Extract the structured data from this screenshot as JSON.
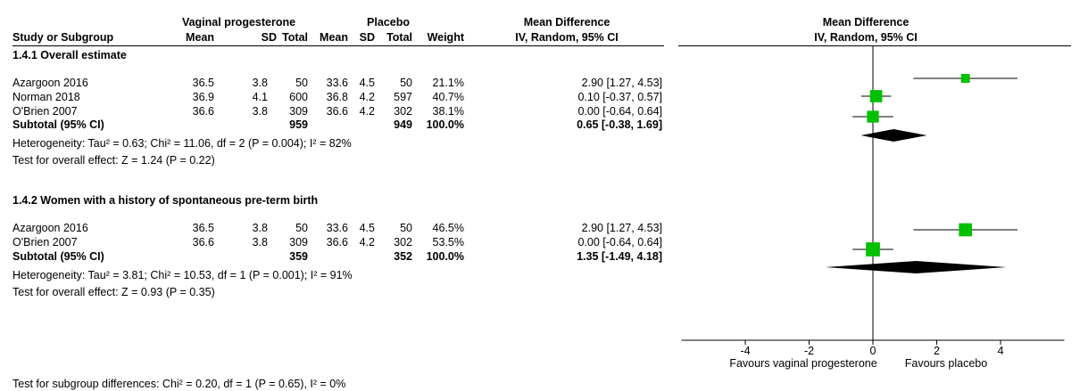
{
  "header": {
    "group1": "Vaginal progesterone",
    "group2": "Placebo",
    "effect_title": "Mean Difference",
    "plot_title": "Mean Difference",
    "plot_subtitle": "IV, Random, 95% CI",
    "columns": {
      "study": "Study or Subgroup",
      "mean1": "Mean",
      "sd1": "SD",
      "total1": "Total",
      "mean2": "Mean",
      "sd2": "SD",
      "total2": "Total",
      "weight": "Weight",
      "ci": "IV, Random, 95% CI"
    }
  },
  "subgroups": [
    {
      "title": "1.4.1 Overall estimate",
      "rows": [
        {
          "study": "Azargoon 2016",
          "mean1": "36.5",
          "sd1": "3.8",
          "total1": "50",
          "mean2": "33.6",
          "sd2": "4.5",
          "total2": "50",
          "weight": "21.1%",
          "ci": "2.90 [1.27, 4.53]"
        },
        {
          "study": "Norman 2018",
          "mean1": "36.9",
          "sd1": "4.1",
          "total1": "600",
          "mean2": "36.8",
          "sd2": "4.2",
          "total2": "597",
          "weight": "40.7%",
          "ci": "0.10 [-0.37, 0.57]"
        },
        {
          "study": "O'Brien 2007",
          "mean1": "36.6",
          "sd1": "3.8",
          "total1": "309",
          "mean2": "36.6",
          "sd2": "4.2",
          "total2": "302",
          "weight": "38.1%",
          "ci": "0.00 [-0.64, 0.64]"
        }
      ],
      "subtotal": {
        "label": "Subtotal (95% CI)",
        "total1": "959",
        "total2": "949",
        "weight": "100.0%",
        "ci": "0.65 [-0.38, 1.69]"
      },
      "heterogeneity": "Heterogeneity: Tau² = 0.63; Chi² = 11.06, df = 2 (P = 0.004); I² = 82%",
      "overall": "Test for overall effect: Z = 1.24 (P = 0.22)"
    },
    {
      "title": "1.4.2 Women with a history of spontaneous pre-term birth",
      "rows": [
        {
          "study": "Azargoon 2016",
          "mean1": "36.5",
          "sd1": "3.8",
          "total1": "50",
          "mean2": "33.6",
          "sd2": "4.5",
          "total2": "50",
          "weight": "46.5%",
          "ci": "2.90 [1.27, 4.53]"
        },
        {
          "study": "O'Brien 2007",
          "mean1": "36.6",
          "sd1": "3.8",
          "total1": "309",
          "mean2": "36.6",
          "sd2": "4.2",
          "total2": "302",
          "weight": "53.5%",
          "ci": "0.00 [-0.64, 0.64]"
        }
      ],
      "subtotal": {
        "label": "Subtotal (95% CI)",
        "total1": "359",
        "total2": "352",
        "weight": "100.0%",
        "ci": "1.35 [-1.49, 4.18]"
      },
      "heterogeneity": "Heterogeneity: Tau² = 3.81; Chi² = 10.53, df = 1 (P = 0.001); I² = 91%",
      "overall": "Test for overall effect: Z = 0.93 (P = 0.35)"
    }
  ],
  "subgroup_diff": "Test for subgroup differences: Chi² = 0.20, df = 1 (P = 0.65), I² = 0%",
  "axis": {
    "favours_left": "Favours vaginal progesterone",
    "favours_right": "Favours placebo"
  },
  "colors": {
    "study_marker": "#00c000",
    "diamond": "#000000"
  },
  "chart_data": {
    "type": "forest",
    "xlim": [
      -6,
      6
    ],
    "xticks": [
      -4,
      -2,
      0,
      2,
      4
    ],
    "null_line": 0,
    "studies": [
      {
        "subgroup": "1.4.1 Overall estimate",
        "name": "Azargoon 2016",
        "estimate": 2.9,
        "lower": 1.27,
        "upper": 4.53,
        "weight": 21.1
      },
      {
        "subgroup": "1.4.1 Overall estimate",
        "name": "Norman 2018",
        "estimate": 0.1,
        "lower": -0.37,
        "upper": 0.57,
        "weight": 40.7
      },
      {
        "subgroup": "1.4.1 Overall estimate",
        "name": "O'Brien 2007",
        "estimate": 0.0,
        "lower": -0.64,
        "upper": 0.64,
        "weight": 38.1
      },
      {
        "subgroup": "1.4.2 Women with a history of spontaneous pre-term birth",
        "name": "Azargoon 2016",
        "estimate": 2.9,
        "lower": 1.27,
        "upper": 4.53,
        "weight": 46.5
      },
      {
        "subgroup": "1.4.2 Women with a history of spontaneous pre-term birth",
        "name": "O'Brien 2007",
        "estimate": 0.0,
        "lower": -0.64,
        "upper": 0.64,
        "weight": 53.5
      }
    ],
    "subtotals": [
      {
        "subgroup": "1.4.1 Overall estimate",
        "estimate": 0.65,
        "lower": -0.38,
        "upper": 1.69
      },
      {
        "subgroup": "1.4.2 Women with a history of spontaneous pre-term birth",
        "estimate": 1.35,
        "lower": -1.49,
        "upper": 4.18
      }
    ]
  }
}
